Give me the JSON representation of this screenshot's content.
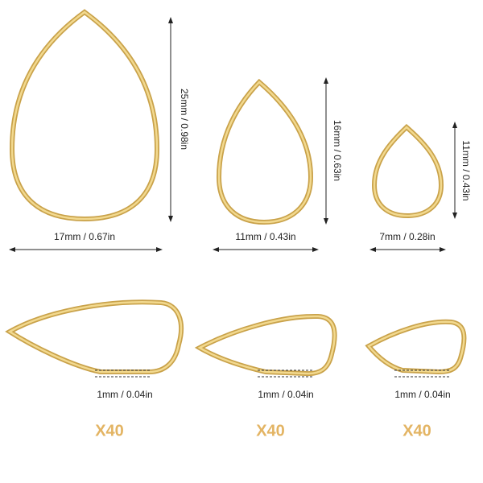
{
  "items": [
    {
      "height": "25mm / 0.98in",
      "width": "17mm / 0.67in",
      "thickness": "1mm / 0.04in",
      "quantity": "X40"
    },
    {
      "height": "16mm / 0.63in",
      "width": "11mm / 0.43in",
      "thickness": "1mm / 0.04in",
      "quantity": "X40"
    },
    {
      "height": "11mm / 0.43in",
      "width": "7mm / 0.28in",
      "thickness": "1mm / 0.04in",
      "quantity": "X40"
    }
  ]
}
